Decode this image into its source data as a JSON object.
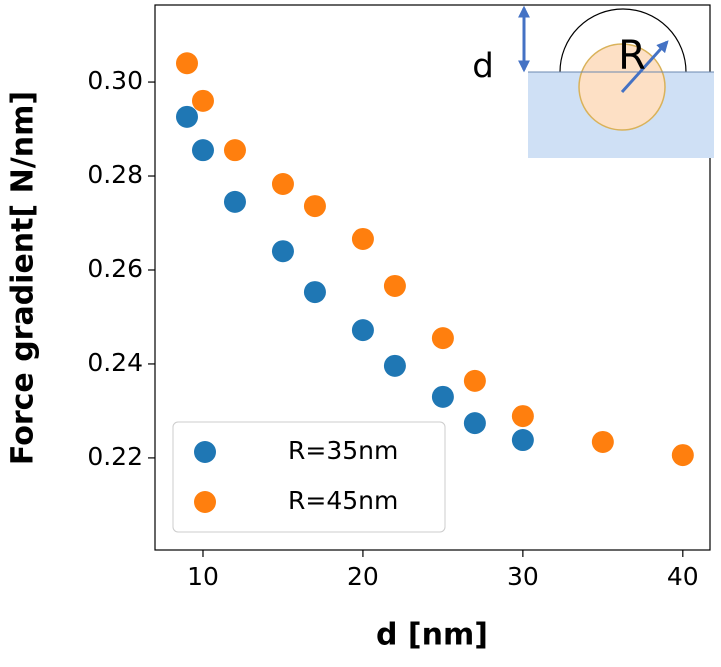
{
  "chart_data": {
    "type": "scatter",
    "xlabel": "d [nm]",
    "ylabel": "Force gradient[ N/nm]",
    "xlim": [
      7,
      41.7
    ],
    "ylim": [
      0.2004,
      0.3164
    ],
    "xticks": [
      10,
      20,
      30,
      40
    ],
    "yticks": [
      0.22,
      0.24,
      0.26,
      0.28,
      {
        "value": 0.3,
        "label": "0.30"
      }
    ],
    "legend": "lower left",
    "inset_labels": [
      "d",
      "R"
    ],
    "series": [
      {
        "name": "R=35nm",
        "color": "#1f77b4",
        "x": [
          9,
          10,
          12,
          15,
          17,
          20,
          22,
          25,
          27,
          30
        ],
        "values": [
          0.2926,
          0.2855,
          0.2745,
          0.264,
          0.2553,
          0.2472,
          0.2396,
          0.233,
          0.2274,
          0.2238
        ]
      },
      {
        "name": "R=45nm",
        "color": "#ff7f0e",
        "x": [
          9,
          10,
          12,
          15,
          17,
          20,
          22,
          25,
          27,
          30,
          35,
          40
        ],
        "values": [
          0.304,
          0.296,
          0.2855,
          0.2783,
          0.2736,
          0.2666,
          0.2566,
          0.2455,
          0.2364,
          0.2289,
          0.2234,
          0.2206
        ]
      }
    ]
  }
}
